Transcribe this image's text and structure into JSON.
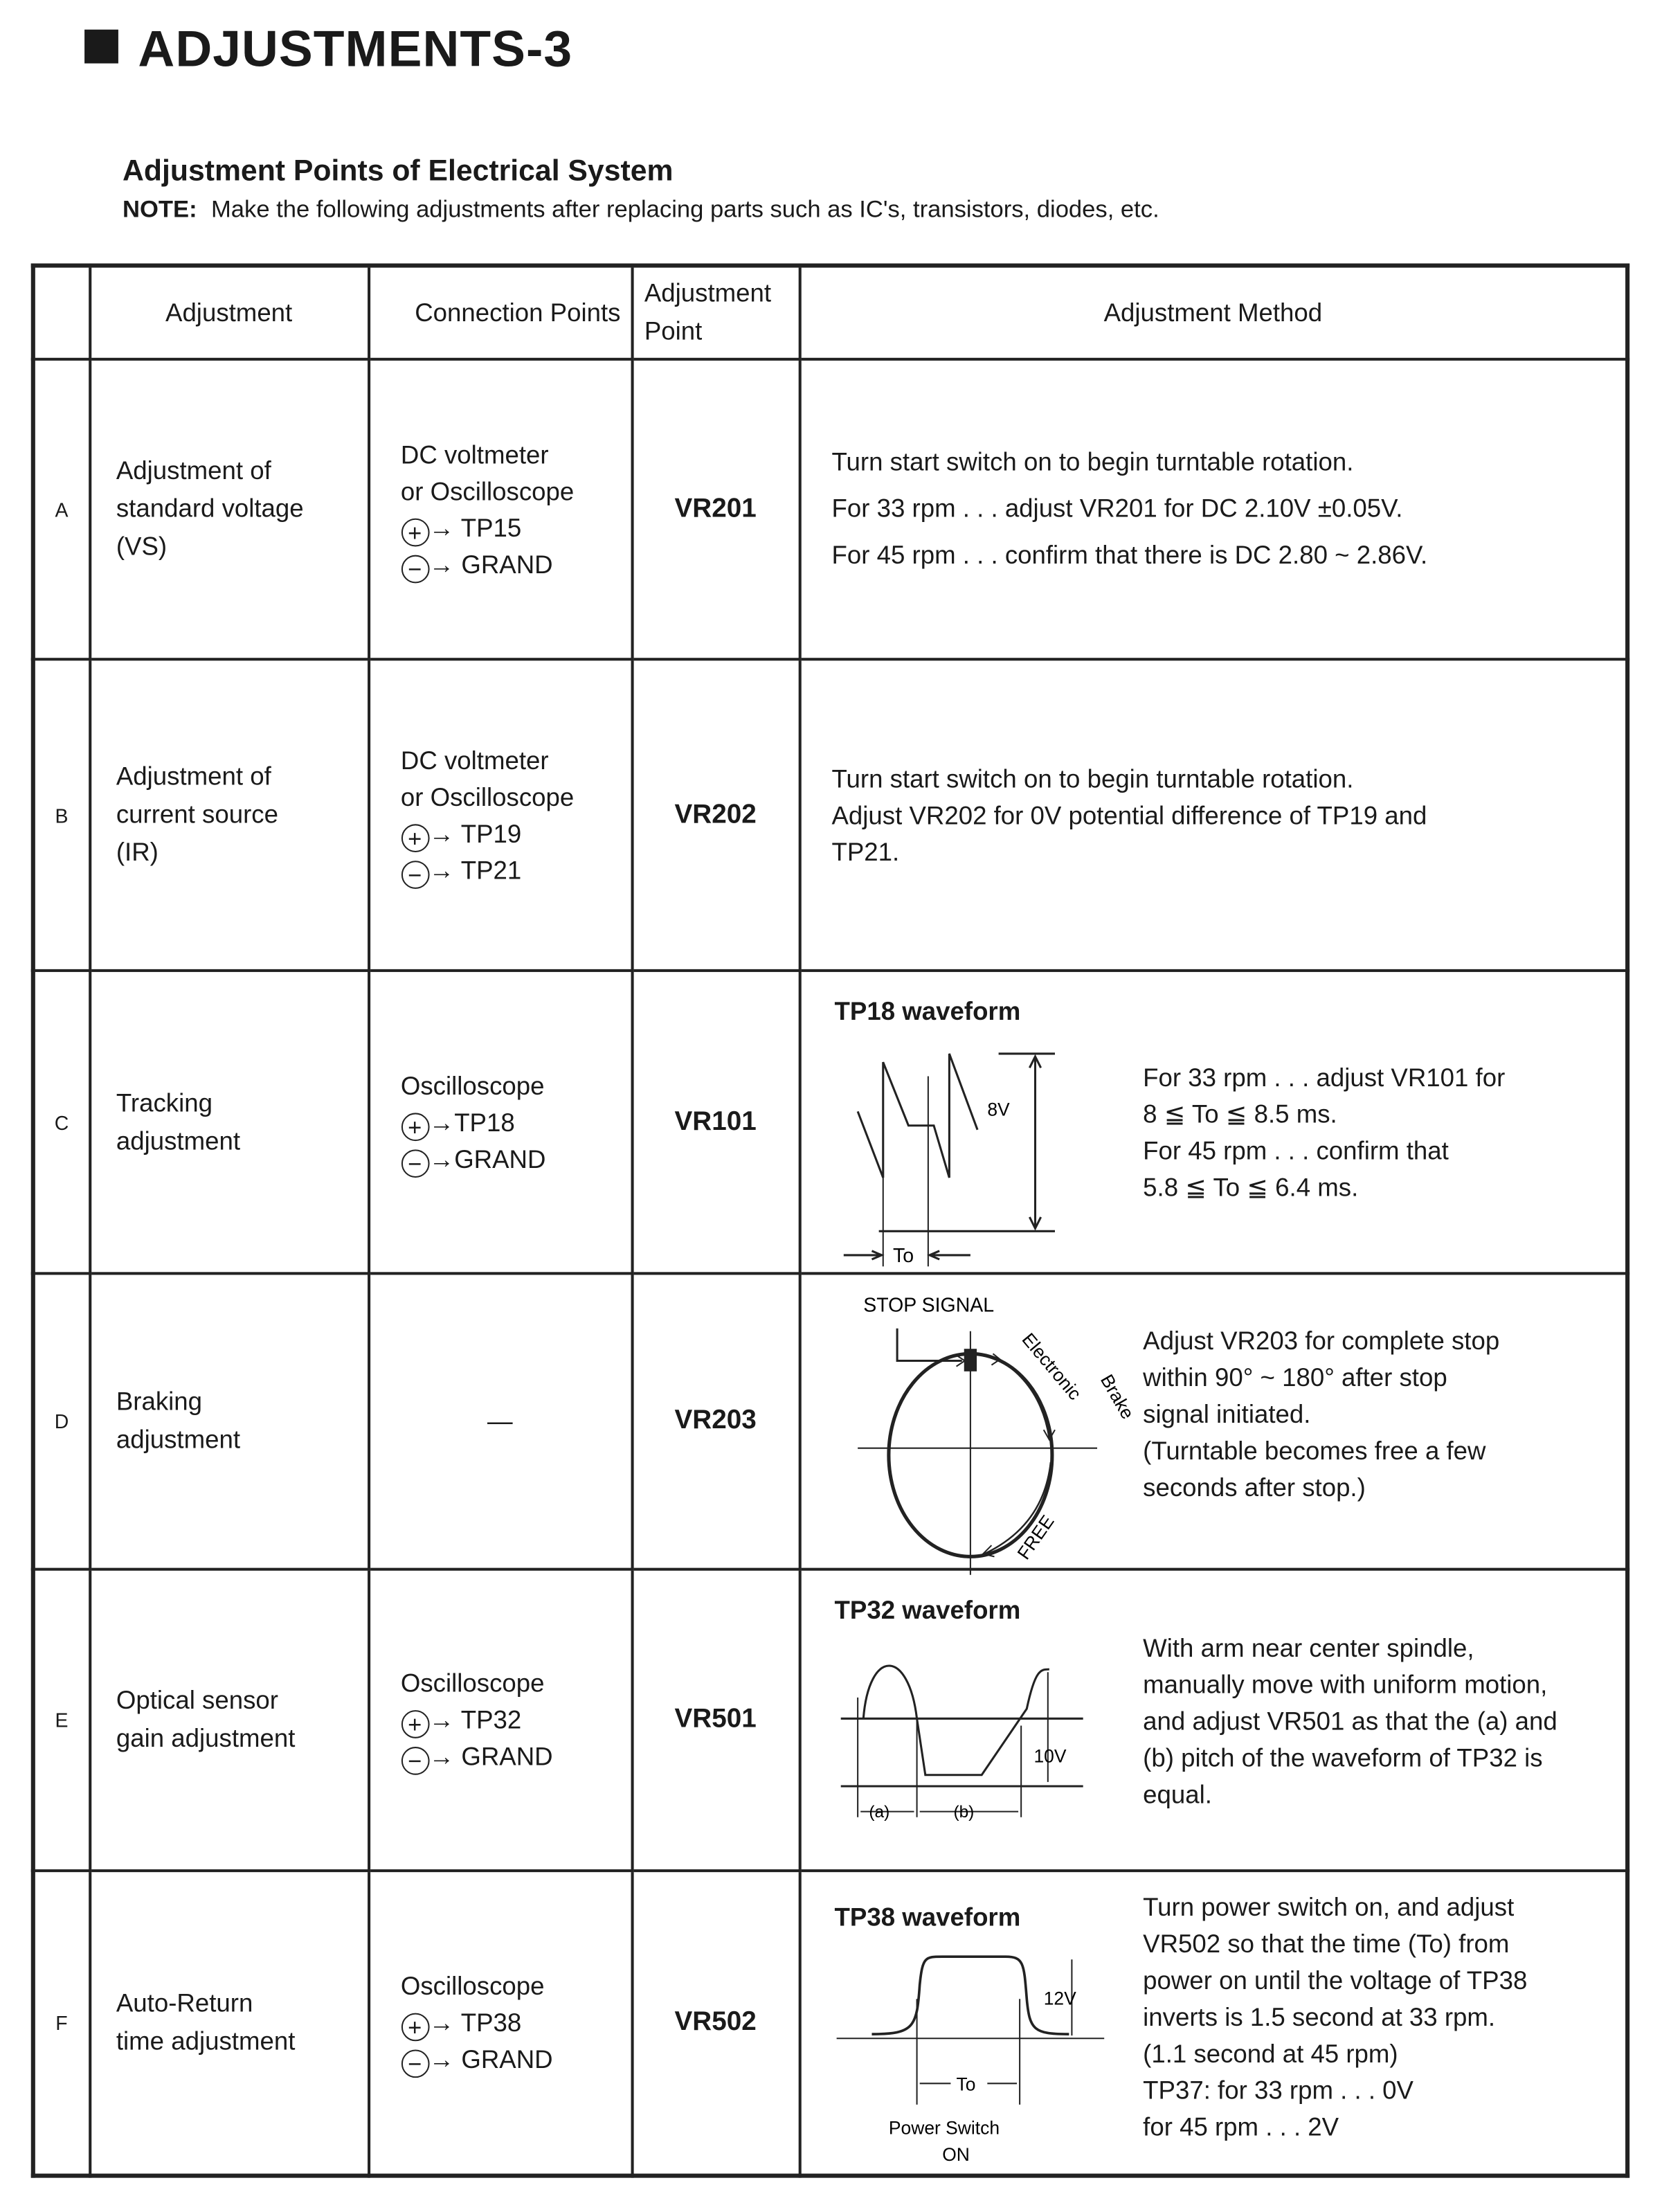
{
  "title": "ADJUSTMENTS-3",
  "subtitle": "Adjustment Points of Electrical System",
  "note": {
    "label": "NOTE:",
    "text": "Make the following adjustments after replacing parts such as IC's, transistors, diodes, etc."
  },
  "headers": {
    "adjustment": "Adjustment",
    "connection": "Connection Points",
    "point": "Adjustment Point",
    "method": "Adjustment Method"
  },
  "rows": [
    {
      "letter": "A",
      "adjustment": [
        "Adjustment of",
        "standard voltage",
        "(VS)"
      ],
      "connection": [
        "DC voltmeter",
        "or Oscilloscope",
        "→ TP15",
        "→ GRAND"
      ],
      "point": "VR201",
      "method": [
        "Turn start switch on to begin turntable rotation.",
        "For 33 rpm . . . adjust VR201 for DC 2.10V ±0.05V.",
        "For 45 rpm . . . confirm that there is DC 2.80 ~ 2.86V."
      ]
    },
    {
      "letter": "B",
      "adjustment": [
        "Adjustment of",
        "current source",
        "(IR)"
      ],
      "connection": [
        "DC voltmeter",
        "or Oscilloscope",
        "→ TP19",
        "→ TP21"
      ],
      "point": "VR202",
      "method": [
        "Turn start switch on to begin turntable rotation.",
        "Adjust VR202 for 0V potential difference of TP19 and",
        "TP21."
      ]
    },
    {
      "letter": "C",
      "adjustment": [
        "Tracking",
        "adjustment"
      ],
      "connection": [
        "Oscilloscope",
        "→TP18",
        "→GRAND"
      ],
      "point": "VR101",
      "waveform_title": "TP18 waveform",
      "waveform_labels": {
        "amp": "8V",
        "period": "To"
      },
      "method": [
        "For 33 rpm . . . adjust VR101 for",
        "8 ≦ To ≦ 8.5 ms.",
        "For 45 rpm . . . confirm that",
        "5.8 ≦ To ≦ 6.4 ms."
      ]
    },
    {
      "letter": "D",
      "adjustment": [
        "Braking",
        "adjustment"
      ],
      "connection": [
        "—"
      ],
      "point": "VR203",
      "diagram_labels": {
        "stop": "STOP SIGNAL",
        "brake1": "Electronic",
        "brake2": "Brake",
        "free": "FREE"
      },
      "method": [
        "Adjust VR203 for complete stop",
        "within 90° ~ 180° after stop",
        "signal initiated.",
        "(Turntable becomes free a few",
        "seconds after stop.)"
      ]
    },
    {
      "letter": "E",
      "adjustment": [
        "Optical sensor",
        "gain adjustment"
      ],
      "connection": [
        "Oscilloscope",
        "→ TP32",
        "→ GRAND"
      ],
      "point": "VR501",
      "waveform_title": "TP32 waveform",
      "waveform_labels": {
        "amp": "10V",
        "a": "(a)",
        "b": "(b)"
      },
      "method": [
        "With arm near center spindle,",
        "manually move with uniform motion,",
        "and adjust VR501 as that the (a) and",
        "(b) pitch of the waveform of TP32 is",
        "equal."
      ]
    },
    {
      "letter": "F",
      "adjustment": [
        "Auto-Return",
        "time adjustment"
      ],
      "connection": [
        "Oscilloscope",
        "→ TP38",
        "→ GRAND"
      ],
      "point": "VR502",
      "waveform_title": "TP38 waveform",
      "waveform_labels": {
        "amp": "12V",
        "period": "To",
        "switch1": "Power Switch",
        "switch2": "ON"
      },
      "method": [
        "Turn power switch on, and adjust",
        "VR502 so that the time (To) from",
        "power on until the voltage of TP38",
        "inverts is 1.5 second at 33 rpm.",
        "(1.1 second at 45 rpm)",
        "TP37:    for 33 rpm . . . 0V",
        "              for 45 rpm . . . 2V"
      ]
    }
  ],
  "symbols": {
    "plus": "+",
    "minus": "−"
  }
}
